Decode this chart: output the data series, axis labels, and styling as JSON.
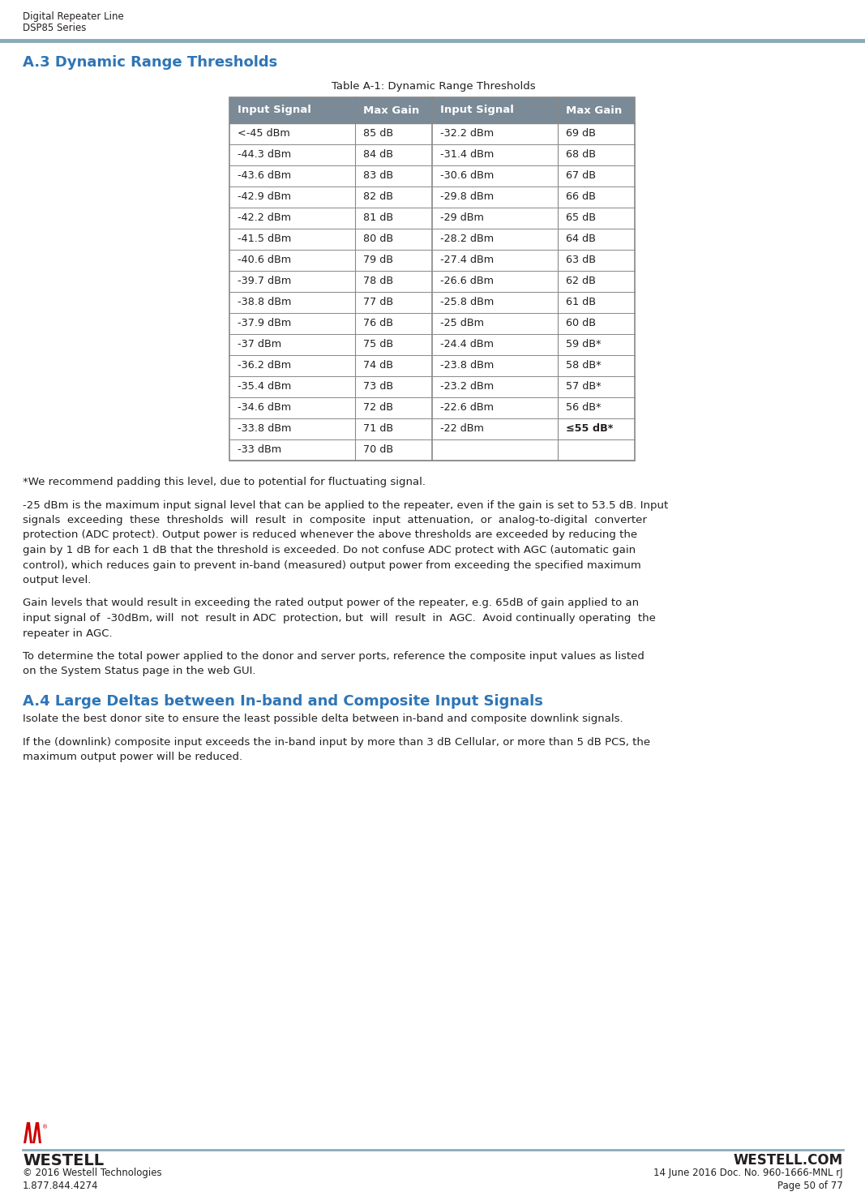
{
  "page_title_line1": "Digital Repeater Line",
  "page_title_line2": "DSP85 Series",
  "section_title": "A.3 Dynamic Range Thresholds",
  "table_caption": "Table A-1: Dynamic Range Thresholds",
  "header_bg_color": "#7a8a96",
  "header_text_color": "#ffffff",
  "header_cols": [
    "Input Signal",
    "Max Gain",
    "Input Signal",
    "Max Gain"
  ],
  "table_data_left": [
    [
      "<-45 dBm",
      "85 dB"
    ],
    [
      "-44.3 dBm",
      "84 dB"
    ],
    [
      "-43.6 dBm",
      "83 dB"
    ],
    [
      "-42.9 dBm",
      "82 dB"
    ],
    [
      "-42.2 dBm",
      "81 dB"
    ],
    [
      "-41.5 dBm",
      "80 dB"
    ],
    [
      "-40.6 dBm",
      "79 dB"
    ],
    [
      "-39.7 dBm",
      "78 dB"
    ],
    [
      "-38.8 dBm",
      "77 dB"
    ],
    [
      "-37.9 dBm",
      "76 dB"
    ],
    [
      "-37 dBm",
      "75 dB"
    ],
    [
      "-36.2 dBm",
      "74 dB"
    ],
    [
      "-35.4 dBm",
      "73 dB"
    ],
    [
      "-34.6 dBm",
      "72 dB"
    ],
    [
      "-33.8 dBm",
      "71 dB"
    ],
    [
      "-33 dBm",
      "70 dB"
    ]
  ],
  "table_data_right": [
    [
      "-32.2 dBm",
      "69 dB"
    ],
    [
      "-31.4 dBm",
      "68 dB"
    ],
    [
      "-30.6 dBm",
      "67 dB"
    ],
    [
      "-29.8 dBm",
      "66 dB"
    ],
    [
      "-29 dBm",
      "65 dB"
    ],
    [
      "-28.2 dBm",
      "64 dB"
    ],
    [
      "-27.4 dBm",
      "63 dB"
    ],
    [
      "-26.6 dBm",
      "62 dB"
    ],
    [
      "-25.8 dBm",
      "61 dB"
    ],
    [
      "-25 dBm",
      "60 dB"
    ],
    [
      "-24.4 dBm",
      "59 dB*"
    ],
    [
      "-23.8 dBm",
      "58 dB*"
    ],
    [
      "-23.2 dBm",
      "57 dB*"
    ],
    [
      "-22.6 dBm",
      "56 dB*"
    ],
    [
      "-22 dBm",
      "≤55 dB*"
    ],
    [
      "",
      ""
    ]
  ],
  "footnote_star": "*We recommend padding this level, due to potential for fluctuating signal.",
  "para1_lines": [
    "-25 dBm is the maximum input signal level that can be applied to the repeater, even if the gain is set to 53.5 dB. Input",
    "signals  exceeding  these  thresholds  will  result  in  composite  input  attenuation,  or  analog-to-digital  converter",
    "protection (ADC protect). Output power is reduced whenever the above thresholds are exceeded by reducing the",
    "gain by 1 dB for each 1 dB that the threshold is exceeded. Do not confuse ADC protect with AGC (automatic gain",
    "control), which reduces gain to prevent in-band (measured) output power from exceeding the specified maximum",
    "output level."
  ],
  "para2_lines": [
    "Gain levels that would result in exceeding the rated output power of the repeater, e.g. 65dB of gain applied to an",
    "input signal of  -30dBm, will  not  result in ADC  protection, but  will  result  in  AGC.  Avoid continually operating  the",
    "repeater in AGC."
  ],
  "para3_lines": [
    "To determine the total power applied to the donor and server ports, reference the composite input values as listed",
    "on the System Status page in the web GUI."
  ],
  "section2_title": "A.4 Large Deltas between In-band and Composite Input Signals",
  "para4_lines": [
    "Isolate the best donor site to ensure the least possible delta between in-band and composite downlink signals."
  ],
  "para5_lines": [
    "If the (downlink) composite input exceeds the in-band input by more than 3 dB Cellular, or more than 5 dB PCS, the",
    "maximum output power will be reduced."
  ],
  "footer_left1": "© 2016 Westell Technologies",
  "footer_left2": "1.877.844.4274",
  "footer_right1": "14 June 2016 Doc. No. 960-1666-MNL rJ",
  "footer_right2": "Page 50 of 77",
  "footer_brand": "WESTELL",
  "footer_website": "WESTELL.COM",
  "header_line_color": "#8aaaba",
  "text_color": "#231f20",
  "table_border_color": "#888888",
  "body_text_color": "#231f20"
}
